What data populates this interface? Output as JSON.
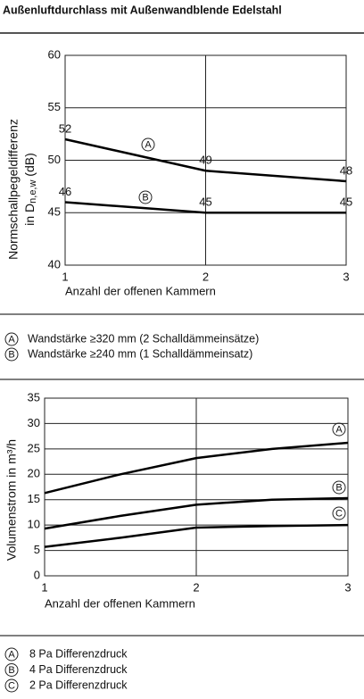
{
  "title": "Außenluftdurchlass mit Außenwandblende Edelstahl",
  "chart_data": [
    {
      "type": "line",
      "ylabel": {
        "line1": "Normschallpegeldifferenz",
        "prefix": "in D",
        "sub": "n,e,w",
        "suffix": " (dB)"
      },
      "xlabel": "Anzahl der offenen Kammern",
      "x": [
        1,
        2,
        3
      ],
      "xlim": [
        1,
        3
      ],
      "xticks": [
        1,
        2,
        3
      ],
      "ylim": [
        40,
        60
      ],
      "yticks": [
        40,
        45,
        50,
        55,
        60
      ],
      "grid": true,
      "series": [
        {
          "name": "Wandstärke ≥320 mm (2 Schalldämmeinsätze)",
          "marker": "A",
          "color": "#000000",
          "values": [
            52,
            49,
            48
          ]
        },
        {
          "name": "Wandstärke ≥240 mm (1 Schalldämmeinsatz)",
          "marker": "B",
          "color": "#000000",
          "values": [
            46,
            45,
            45
          ]
        }
      ]
    },
    {
      "type": "line",
      "ylabel": {
        "line1": "Volumenstrom in m³/h"
      },
      "xlabel": "Anzahl der offenen Kammern",
      "x": [
        1,
        1.5,
        2,
        2.5,
        3
      ],
      "xlim": [
        1,
        3
      ],
      "xticks": [
        1,
        2,
        3
      ],
      "ylim": [
        0,
        35
      ],
      "yticks": [
        0,
        5,
        10,
        15,
        20,
        25,
        30,
        35
      ],
      "grid": true,
      "series": [
        {
          "name": "8 Pa Differenzdruck",
          "marker": "A",
          "color": "#000000",
          "values": [
            16.3,
            20,
            23.2,
            25,
            26.2
          ]
        },
        {
          "name": "4 Pa Differenzdruck",
          "marker": "B",
          "color": "#000000",
          "values": [
            9.3,
            11.8,
            14,
            15,
            15.3
          ]
        },
        {
          "name": "2 Pa Differenzdruck",
          "marker": "C",
          "color": "#000000",
          "values": [
            5.7,
            7.5,
            9.5,
            9.8,
            10
          ]
        }
      ]
    }
  ]
}
